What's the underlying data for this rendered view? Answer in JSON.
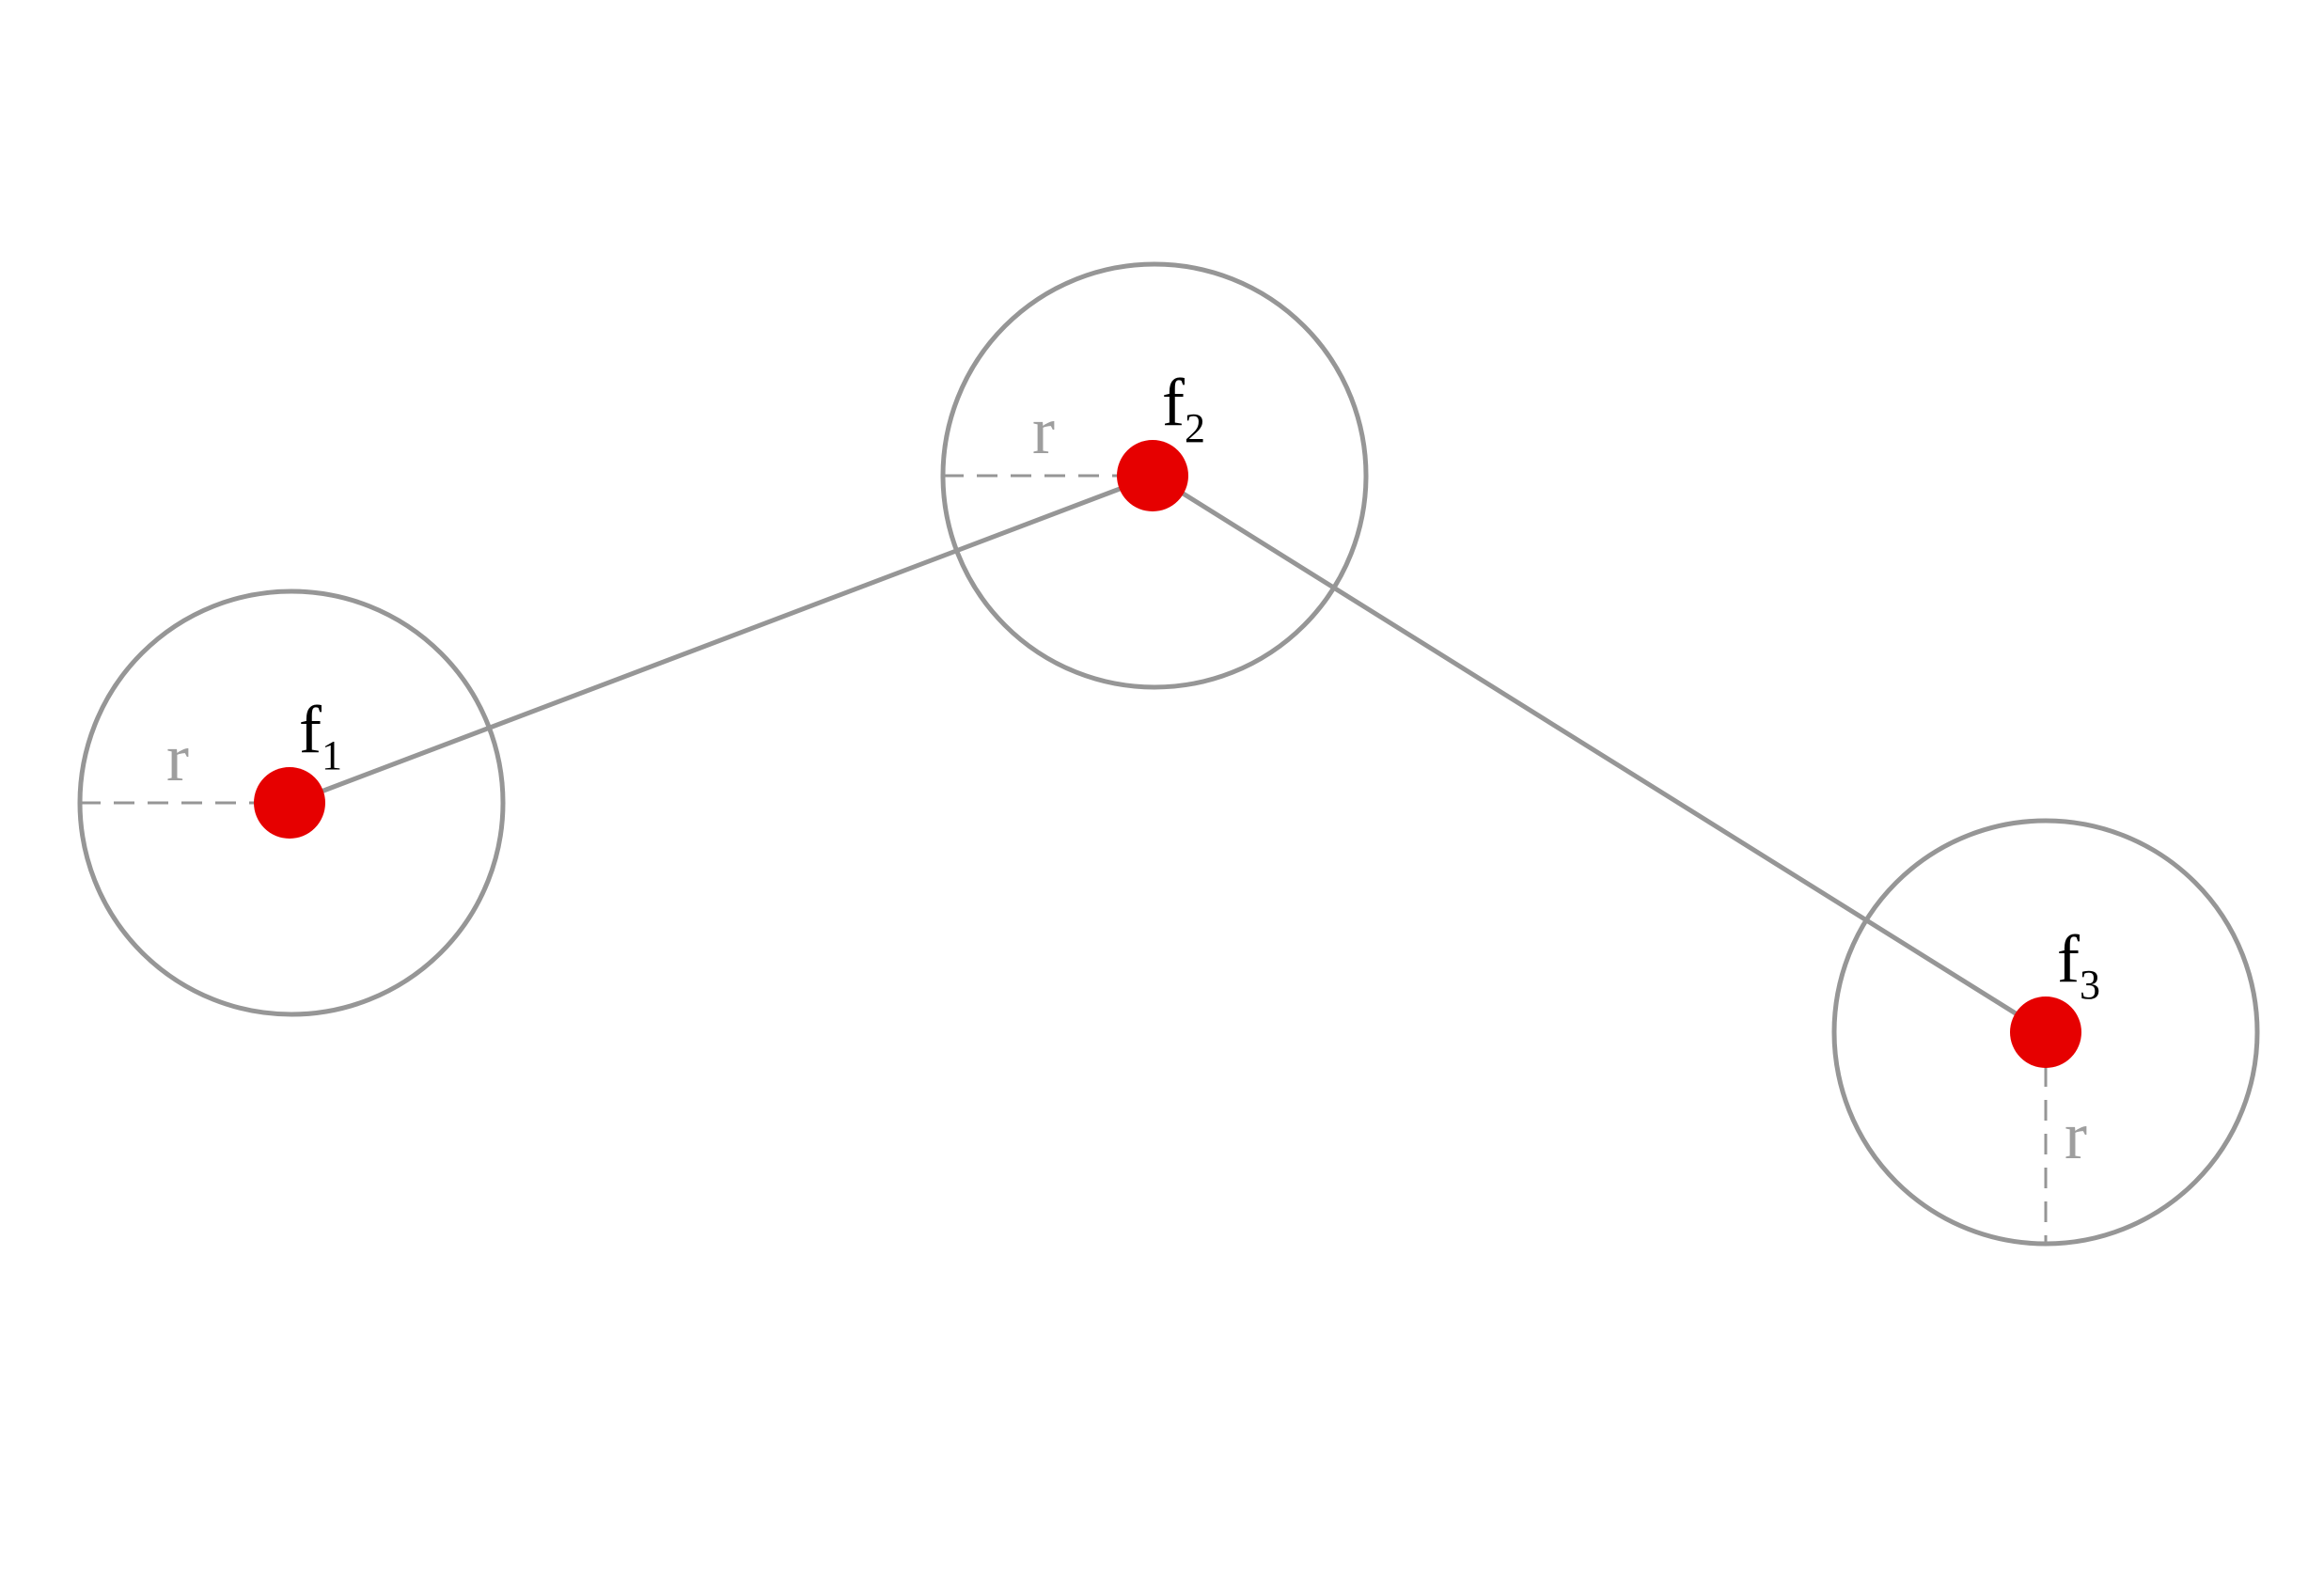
{
  "colors": {
    "node": "#e60000",
    "ring": "#969696",
    "r_label": "#9e9e9e",
    "label": "#000000"
  },
  "nodes": [
    {
      "label": "f",
      "subscript": "1",
      "radius_label": "r",
      "radius_direction": "left"
    },
    {
      "label": "f",
      "subscript": "2",
      "radius_label": "r",
      "radius_direction": "left"
    },
    {
      "label": "f",
      "subscript": "3",
      "radius_label": "r",
      "radius_direction": "down"
    }
  ],
  "links": [
    {
      "from": 0,
      "to": 1
    },
    {
      "from": 1,
      "to": 2
    }
  ]
}
